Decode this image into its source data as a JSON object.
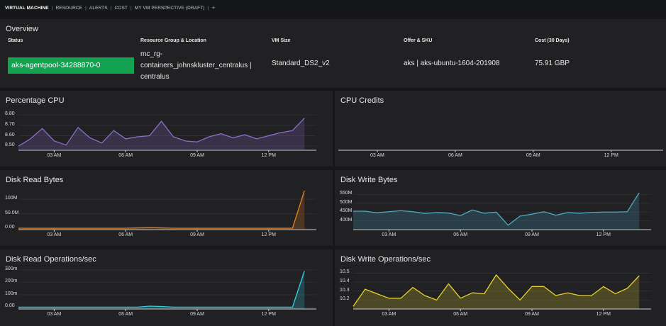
{
  "nav": {
    "tabs": [
      {
        "label": "VIRTUAL MACHINE",
        "active": true
      },
      {
        "label": "RESOURCE",
        "active": false
      },
      {
        "label": "ALERTS",
        "active": false
      },
      {
        "label": "COST",
        "active": false
      },
      {
        "label": "MY VM PERSPECTIVE (DRAFT)",
        "active": false
      }
    ],
    "add_label": "+"
  },
  "overview": {
    "title": "Overview",
    "columns": [
      {
        "header": "Status",
        "value": "aks-agentpool-34288870-0"
      },
      {
        "header": "Resource Group & Location",
        "value": "mc_rg-containers_johnskluster_centralus | centralus"
      },
      {
        "header": "VM Size",
        "value": "Standard_DS2_v2"
      },
      {
        "header": "Offer & SKU",
        "value": "aks | aks-ubuntu-1604-201908"
      },
      {
        "header": "Cost (30 Days)",
        "value": "75.91 GBP"
      }
    ],
    "status_color": "#13a350"
  },
  "colors": {
    "cpu": "#8b6fc9",
    "read_bytes": "#e8821e",
    "write_bytes": "#4fa8c2",
    "read_ops": "#34d0e4",
    "write_ops": "#e8d12a"
  },
  "chart_data": [
    {
      "id": "cpu",
      "type": "area",
      "title": "Percentage CPU",
      "color": "#8b6fc9",
      "ylim": [
        8.46,
        8.85
      ],
      "yticks": [
        {
          "v": 8.5,
          "label": "8.50"
        },
        {
          "v": 8.6,
          "label": "8.60"
        },
        {
          "v": 8.7,
          "label": "8.70"
        },
        {
          "v": 8.8,
          "label": "8.80"
        }
      ],
      "xlim": [
        0,
        25
      ],
      "xticks": [
        {
          "v": 3,
          "label": "03 AM"
        },
        {
          "v": 9,
          "label": "06 AM"
        },
        {
          "v": 15,
          "label": "09 AM"
        },
        {
          "v": 21,
          "label": "12 PM"
        }
      ],
      "x": [
        0,
        1,
        2,
        3,
        4,
        5,
        6,
        7,
        8,
        9,
        10,
        11,
        12,
        13,
        14,
        15,
        16,
        17,
        18,
        19,
        20,
        21,
        22,
        23,
        24
      ],
      "y": [
        8.5,
        8.57,
        8.67,
        8.55,
        8.51,
        8.68,
        8.58,
        8.53,
        8.65,
        8.57,
        8.59,
        8.6,
        8.74,
        8.59,
        8.55,
        8.54,
        8.59,
        8.62,
        8.58,
        8.61,
        8.57,
        8.6,
        8.63,
        8.65,
        8.77
      ],
      "series": [
        {
          "name": "Percentage CPU"
        }
      ]
    },
    {
      "id": "credits",
      "type": "line",
      "title": "CPU Credits",
      "xlim": [
        0,
        25
      ],
      "xticks": [
        {
          "v": 3,
          "label": "03 AM"
        },
        {
          "v": 9,
          "label": "06 AM"
        },
        {
          "v": 15,
          "label": "09 AM"
        },
        {
          "v": 21,
          "label": "12 PM"
        }
      ],
      "series": []
    },
    {
      "id": "readbytes",
      "type": "area",
      "title": "Disk Read Bytes",
      "color": "#e8821e",
      "ylim": [
        -5,
        135
      ],
      "yticks": [
        {
          "v": 0,
          "label": "0.00"
        },
        {
          "v": 50,
          "label": "50.0M"
        },
        {
          "v": 100,
          "label": "100M"
        }
      ],
      "xlim": [
        0,
        25
      ],
      "xticks": [
        {
          "v": 3,
          "label": "03 AM"
        },
        {
          "v": 9,
          "label": "06 AM"
        },
        {
          "v": 15,
          "label": "09 AM"
        },
        {
          "v": 21,
          "label": "12 PM"
        }
      ],
      "x": [
        0,
        9,
        10,
        11,
        12,
        13,
        21,
        22,
        23,
        24
      ],
      "y": [
        0,
        0,
        1,
        2,
        1,
        0,
        0,
        0,
        0,
        130
      ],
      "series": [
        {
          "name": "Disk Read Bytes"
        }
      ]
    },
    {
      "id": "writebytes",
      "type": "area",
      "title": "Disk Write Bytes",
      "color": "#4fa8c2",
      "ylim": [
        350,
        580
      ],
      "yticks": [
        {
          "v": 400,
          "label": "400M"
        },
        {
          "v": 450,
          "label": "450M"
        },
        {
          "v": 500,
          "label": "500M"
        },
        {
          "v": 550,
          "label": "550M"
        }
      ],
      "xlim": [
        0,
        25
      ],
      "xticks": [
        {
          "v": 3,
          "label": "03 AM"
        },
        {
          "v": 9,
          "label": "06 AM"
        },
        {
          "v": 15,
          "label": "09 AM"
        },
        {
          "v": 21,
          "label": "12 PM"
        }
      ],
      "x": [
        0,
        1,
        2,
        3,
        4,
        5,
        6,
        7,
        8,
        9,
        10,
        11,
        12,
        13,
        14,
        15,
        16,
        17,
        18,
        19,
        20,
        21,
        22,
        23,
        24
      ],
      "y": [
        455,
        455,
        446,
        452,
        458,
        452,
        442,
        447,
        444,
        430,
        462,
        443,
        450,
        375,
        427,
        438,
        452,
        432,
        447,
        443,
        448,
        450,
        450,
        452,
        560
      ],
      "series": [
        {
          "name": "Disk Write Bytes"
        }
      ]
    },
    {
      "id": "readops",
      "type": "area",
      "title": "Disk Read Operations/sec",
      "color": "#34d0e4",
      "ylim": [
        -15,
        310
      ],
      "yticks": [
        {
          "v": 0,
          "label": "0.00"
        },
        {
          "v": 100,
          "label": "100m"
        },
        {
          "v": 200,
          "label": "200m"
        },
        {
          "v": 300,
          "label": "300m"
        }
      ],
      "xlim": [
        0,
        25
      ],
      "xticks": [
        {
          "v": 3,
          "label": "03 AM"
        },
        {
          "v": 9,
          "label": "06 AM"
        },
        {
          "v": 15,
          "label": "09 AM"
        },
        {
          "v": 21,
          "label": "12 PM"
        }
      ],
      "x": [
        0,
        10,
        11,
        12,
        13,
        22,
        23,
        24
      ],
      "y": [
        0,
        0,
        8,
        5,
        0,
        0,
        0,
        290
      ],
      "series": [
        {
          "name": "Disk Read Operations/sec"
        }
      ]
    },
    {
      "id": "writeops",
      "type": "area",
      "title": "Disk Write Operations/sec",
      "color": "#e8d12a",
      "ylim": [
        10.1,
        10.55
      ],
      "yticks": [
        {
          "v": 10.2,
          "label": "10.2"
        },
        {
          "v": 10.3,
          "label": "10.3"
        },
        {
          "v": 10.4,
          "label": "10.4"
        },
        {
          "v": 10.5,
          "label": "10.5"
        }
      ],
      "xlim": [
        0,
        25
      ],
      "xticks": [
        {
          "v": 3,
          "label": "03 AM"
        },
        {
          "v": 9,
          "label": "06 AM"
        },
        {
          "v": 15,
          "label": "09 AM"
        },
        {
          "v": 21,
          "label": "12 PM"
        }
      ],
      "x": [
        0,
        1,
        2,
        3,
        4,
        5,
        6,
        7,
        8,
        9,
        10,
        11,
        12,
        13,
        14,
        15,
        16,
        17,
        18,
        19,
        20,
        21,
        22,
        23,
        24
      ],
      "y": [
        10.13,
        10.32,
        10.27,
        10.22,
        10.22,
        10.34,
        10.25,
        10.2,
        10.38,
        10.22,
        10.28,
        10.27,
        10.48,
        10.33,
        10.2,
        10.35,
        10.35,
        10.25,
        10.28,
        10.25,
        10.25,
        10.35,
        10.27,
        10.33,
        10.47
      ],
      "series": [
        {
          "name": "Disk Write Operations/sec"
        }
      ]
    }
  ]
}
